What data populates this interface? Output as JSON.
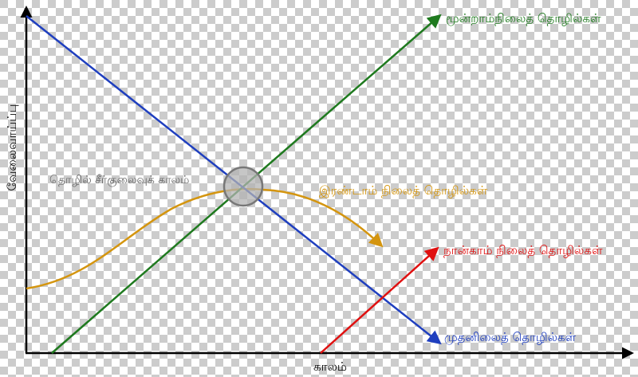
{
  "colors": {
    "checker_light": "#ffffff",
    "checker_dark": "#cccccc",
    "axis": "#000000",
    "primary": "#1f3fbf",
    "secondary": "#d4950f",
    "tertiary": "#1f7a1f",
    "quaternary": "#e01010",
    "circle_fill": "#b3b3b3",
    "circle_stroke": "#777777",
    "transition_text": "#666666"
  },
  "axes": {
    "x_label": "காலம்",
    "y_label": "வேலைவாய்ப்பு"
  },
  "annotation": {
    "transition": "தொழில் சீர்குலைவுக் காலம்"
  },
  "series": {
    "primary": {
      "label": "முதனிலைத் தொழில்கள்"
    },
    "secondary": {
      "label": "இரண்டாம் நிலைத் தொழில்கள்"
    },
    "tertiary": {
      "label": "மூன்றாம்நிலைத் தொழில்கள்"
    },
    "quaternary": {
      "label": "நான்காம் நிலைத் தொழில்கள்"
    }
  }
}
